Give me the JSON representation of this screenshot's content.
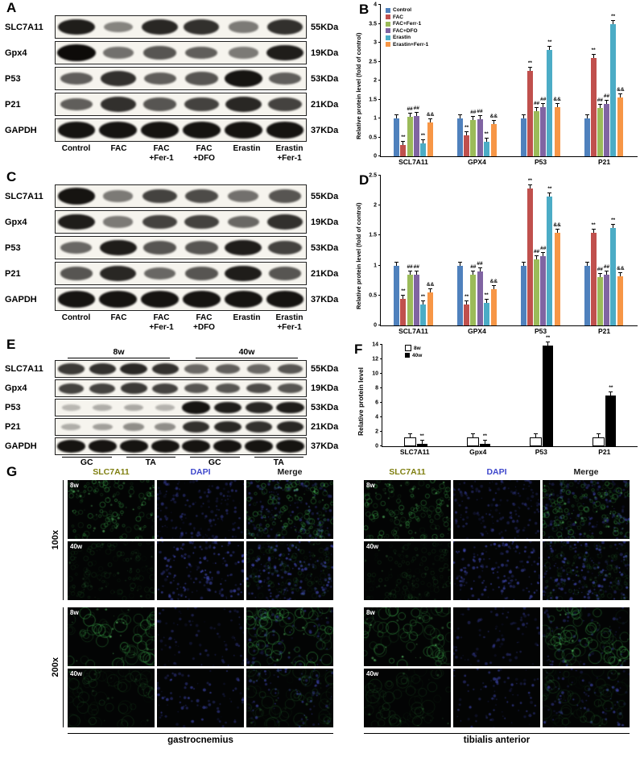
{
  "figure": {
    "panels": {
      "A": "A",
      "B": "B",
      "C": "C",
      "D": "D",
      "E": "E",
      "F": "F",
      "G": "G"
    }
  },
  "blot_a": {
    "rows": [
      {
        "protein": "SLC7A11",
        "kda": "55KDa",
        "bands": [
          0.9,
          0.35,
          0.85,
          0.8,
          0.4,
          0.8
        ]
      },
      {
        "protein": "Gpx4",
        "kda": "19KDa",
        "bands": [
          1.0,
          0.45,
          0.6,
          0.55,
          0.4,
          0.9
        ]
      },
      {
        "protein": "P53",
        "kda": "53KDa",
        "bands": [
          0.55,
          0.8,
          0.55,
          0.6,
          0.95,
          0.55
        ]
      },
      {
        "protein": "P21",
        "kda": "21KDa",
        "bands": [
          0.55,
          0.8,
          0.6,
          0.7,
          0.85,
          0.7
        ]
      },
      {
        "protein": "GAPDH",
        "kda": "37KDa",
        "bands": [
          0.95,
          0.95,
          0.95,
          0.95,
          0.95,
          0.95
        ]
      }
    ],
    "lane_labels": [
      "Control",
      "FAC",
      "FAC\n+Fer-1",
      "FAC\n+DFO",
      "Erastin",
      "Erastin\n+Fer-1"
    ]
  },
  "blot_c": {
    "rows": [
      {
        "protein": "SLC7A11",
        "kda": "55KDa",
        "bands": [
          0.95,
          0.4,
          0.7,
          0.65,
          0.45,
          0.6
        ]
      },
      {
        "protein": "Gpx4",
        "kda": "19KDa",
        "bands": [
          0.9,
          0.4,
          0.7,
          0.7,
          0.5,
          0.8
        ]
      },
      {
        "protein": "P53",
        "kda": "53KDa",
        "bands": [
          0.5,
          0.9,
          0.6,
          0.6,
          0.9,
          0.7
        ]
      },
      {
        "protein": "P21",
        "kda": "21KDa",
        "bands": [
          0.6,
          0.85,
          0.5,
          0.6,
          0.9,
          0.6
        ]
      },
      {
        "protein": "GAPDH",
        "kda": "37KDa",
        "bands": [
          0.95,
          0.95,
          0.95,
          0.95,
          0.95,
          0.95
        ]
      }
    ],
    "lane_labels": [
      "Control",
      "FAC",
      "FAC\n+Fer-1",
      "FAC\n+DFO",
      "Erastin",
      "Erastin\n+Fer-1"
    ]
  },
  "blot_e": {
    "group_headers": [
      "8w",
      "40w"
    ],
    "rows": [
      {
        "protein": "SLC7A11",
        "kda": "55KDa",
        "bands": [
          0.75,
          0.8,
          0.85,
          0.8,
          0.5,
          0.55,
          0.5,
          0.6
        ]
      },
      {
        "protein": "Gpx4",
        "kda": "19KDa",
        "bands": [
          0.7,
          0.7,
          0.75,
          0.7,
          0.6,
          0.6,
          0.65,
          0.6
        ]
      },
      {
        "protein": "P53",
        "kda": "53KDa",
        "bands": [
          0.08,
          0.12,
          0.15,
          0.1,
          0.95,
          0.9,
          0.85,
          0.9
        ]
      },
      {
        "protein": "P21",
        "kda": "21KDa",
        "bands": [
          0.12,
          0.2,
          0.3,
          0.3,
          0.8,
          0.85,
          0.8,
          0.85
        ]
      },
      {
        "protein": "GAPDH",
        "kda": "37KDa",
        "bands": [
          0.95,
          0.95,
          0.95,
          0.95,
          0.95,
          0.95,
          0.95,
          0.95
        ]
      }
    ],
    "lane_group_labels": [
      "GC",
      "TA",
      "GC",
      "TA"
    ]
  },
  "chart_data": [
    {
      "id": "B",
      "type": "bar",
      "ylabel": "Relative protein level (fold of control)",
      "ylim": [
        0,
        4
      ],
      "ytick_step": 0.5,
      "show_legend": true,
      "legend_position": "top-left",
      "categories": [
        "SCL7A11",
        "GPX4",
        "P53",
        "P21"
      ],
      "series": [
        {
          "name": "Control",
          "color": "#4F81BD",
          "values": [
            1.0,
            1.0,
            1.0,
            1.0
          ]
        },
        {
          "name": "FAC",
          "color": "#C0504D",
          "values": [
            0.3,
            0.55,
            2.25,
            2.6
          ]
        },
        {
          "name": "FAC+Ferr-1",
          "color": "#9BBB59",
          "values": [
            1.05,
            0.95,
            1.2,
            1.28
          ]
        },
        {
          "name": "FAC+DFO",
          "color": "#8064A2",
          "values": [
            1.07,
            0.97,
            1.3,
            1.38
          ]
        },
        {
          "name": "Erastin",
          "color": "#4BACC6",
          "values": [
            0.35,
            0.38,
            2.8,
            3.5
          ]
        },
        {
          "name": "Erastin+Ferr-1",
          "color": "#F79646",
          "values": [
            0.9,
            0.85,
            1.3,
            1.55
          ]
        }
      ],
      "marks": [
        [
          "",
          "**",
          "##",
          "##",
          "**",
          "&&"
        ],
        [
          "",
          "**",
          "##",
          "##",
          "**",
          "&&"
        ],
        [
          "",
          "**",
          "##",
          "##",
          "**",
          "&&"
        ],
        [
          "",
          "**",
          "##",
          "##",
          "**",
          "&&"
        ]
      ]
    },
    {
      "id": "D",
      "type": "bar",
      "ylabel": "Relative  protein level (fold of control)",
      "ylim": [
        0,
        2.5
      ],
      "ytick_step": 0.5,
      "show_legend": false,
      "categories": [
        "SCL7A11",
        "GPX4",
        "P53",
        "P21"
      ],
      "series": [
        {
          "name": "Control",
          "color": "#4F81BD",
          "values": [
            1.0,
            1.0,
            1.0,
            1.0
          ]
        },
        {
          "name": "FAC",
          "color": "#C0504D",
          "values": [
            0.45,
            0.35,
            2.28,
            1.55
          ]
        },
        {
          "name": "FAC+Ferr-1",
          "color": "#9BBB59",
          "values": [
            0.85,
            0.85,
            1.1,
            0.8
          ]
        },
        {
          "name": "FAC+DFO",
          "color": "#8064A2",
          "values": [
            0.85,
            0.9,
            1.15,
            0.85
          ]
        },
        {
          "name": "Erastin",
          "color": "#4BACC6",
          "values": [
            0.35,
            0.37,
            2.15,
            1.62
          ]
        },
        {
          "name": "Erastin+Ferr-1",
          "color": "#F79646",
          "values": [
            0.55,
            0.6,
            1.55,
            0.82
          ]
        }
      ],
      "marks": [
        [
          "",
          "**",
          "##",
          "##",
          "**",
          "&&"
        ],
        [
          "",
          "**",
          "##",
          "##",
          "**",
          "&&"
        ],
        [
          "",
          "**",
          "##",
          "##",
          "**",
          "&&"
        ],
        [
          "",
          "**",
          "##",
          "##",
          "**",
          "&&"
        ]
      ]
    },
    {
      "id": "F",
      "type": "bar",
      "ylabel": "Relative protein level",
      "ylim": [
        0,
        14
      ],
      "ytick_step": 2,
      "show_legend": true,
      "legend_position": "top-left",
      "categories": [
        "SLC7A11",
        "Gpx4",
        "P53",
        "P21"
      ],
      "series": [
        {
          "name": "8w",
          "color": "#FFFFFF",
          "border": true,
          "values": [
            1,
            1,
            1,
            1
          ]
        },
        {
          "name": "40w",
          "color": "#000000",
          "values": [
            0.3,
            0.35,
            13.9,
            7.0
          ]
        }
      ],
      "marks": [
        [
          "",
          "**"
        ],
        [
          "",
          "**"
        ],
        [
          "",
          "**"
        ],
        [
          "",
          "**"
        ]
      ]
    }
  ],
  "micro": {
    "column_headers": [
      {
        "label": "SLC7A11",
        "color": "#7f7f10"
      },
      {
        "label": "DAPI",
        "color": "#3f48cc"
      },
      {
        "label": "Merge",
        "color": "#1a1a1a"
      }
    ],
    "tissues": [
      "gastrocnemius",
      "tibialis anterior"
    ],
    "mag_groups": [
      {
        "mag": "100x",
        "rows": [
          {
            "label": "8w",
            "green": 0.8,
            "blue": 0.55,
            "ring": 2.5,
            "count": 110
          },
          {
            "label": "40w",
            "green": 0.3,
            "blue": 0.8,
            "ring": 2.5,
            "count": 110
          }
        ]
      },
      {
        "mag": "200x",
        "rows": [
          {
            "label": "8w",
            "green": 0.9,
            "blue": 0.5,
            "ring": 6,
            "count": 55
          },
          {
            "label": "40w",
            "green": 0.35,
            "blue": 0.7,
            "ring": 6,
            "count": 55
          }
        ]
      }
    ]
  }
}
